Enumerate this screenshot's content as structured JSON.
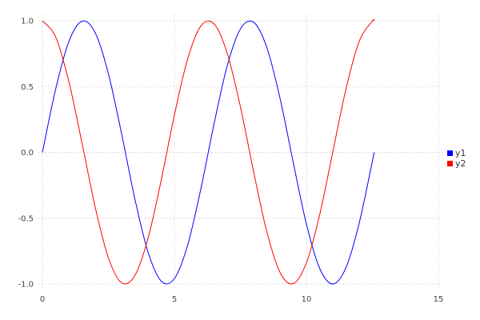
{
  "chart_data": {
    "type": "line",
    "xlim": [
      0,
      15
    ],
    "ylim": [
      -1.0,
      1.0
    ],
    "xticks": [
      "0",
      "5",
      "10",
      "15"
    ],
    "yticks": [
      "1.0",
      "0.5",
      "0.0",
      "-0.5",
      "-1.0"
    ],
    "grid": true,
    "legend_position": "right",
    "x": [
      0,
      0.5,
      1,
      1.5,
      2,
      2.5,
      3,
      3.5,
      4,
      4.5,
      5,
      5.5,
      6,
      6.5,
      7,
      7.5,
      8,
      8.5,
      9,
      9.5,
      10,
      10.5,
      11,
      11.5,
      12,
      12.5,
      12.566
    ],
    "series": [
      {
        "name": "y1",
        "color": "#0000ff",
        "values": [
          0,
          0.479,
          0.841,
          0.997,
          0.909,
          0.598,
          0.141,
          -0.351,
          -0.757,
          -0.978,
          -0.959,
          -0.706,
          -0.279,
          0.215,
          0.657,
          0.938,
          0.989,
          0.798,
          0.412,
          -0.075,
          -0.544,
          -0.88,
          -1.0,
          -0.875,
          -0.537,
          -0.066,
          0
        ]
      },
      {
        "name": "y2",
        "color": "#ff0000",
        "values": [
          1,
          0.878,
          0.54,
          0.071,
          -0.416,
          -0.801,
          -0.99,
          -0.936,
          -0.654,
          -0.211,
          0.284,
          0.709,
          0.96,
          0.977,
          0.754,
          0.347,
          -0.146,
          -0.602,
          -0.911,
          -0.997,
          -0.839,
          -0.476,
          0.004,
          0.483,
          0.844,
          0.998,
          1
        ]
      }
    ]
  }
}
